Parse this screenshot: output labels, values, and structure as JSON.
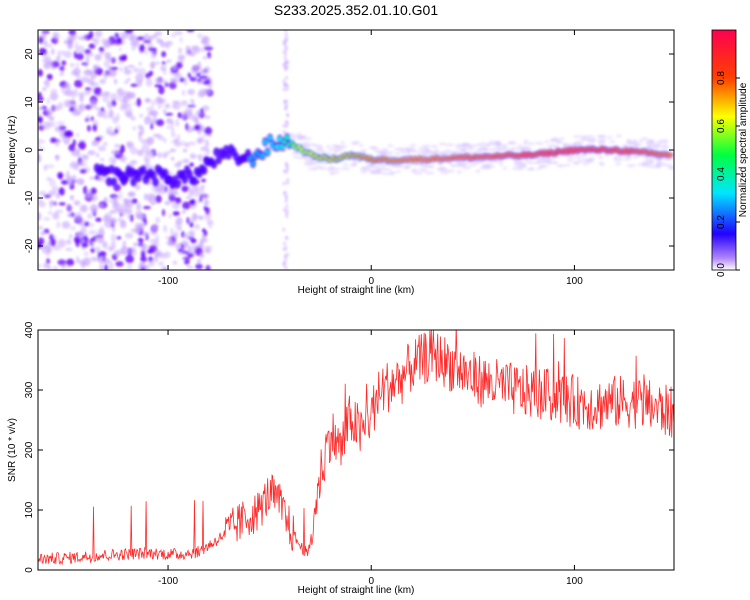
{
  "figure": {
    "title": "S233.2025.352.01.10.G01"
  },
  "chart_data": [
    {
      "type": "heatmap",
      "name": "spectrogram",
      "xlabel": "Height of straight line (km)",
      "ylabel": "Frequency (Hz)",
      "xlim": [
        -164,
        149
      ],
      "ylim": [
        -25,
        25
      ],
      "xticks": [
        -100,
        0,
        100
      ],
      "yticks": [
        -20,
        -10,
        0,
        10,
        20
      ],
      "colorbar": {
        "label": "Normalized spectral amplitude",
        "range": [
          0,
          1
        ],
        "ticks": [
          "0.0",
          "0.2",
          "0.4",
          "0.6",
          "0.8"
        ]
      },
      "signal_track": {
        "x": [
          -135,
          -120,
          -110,
          -95,
          -85,
          -78,
          -70,
          -60,
          -50,
          -42,
          -38,
          -30,
          -20,
          -10,
          0,
          20,
          50,
          80,
          100,
          120,
          145
        ],
        "frequency": [
          -5,
          -5.5,
          -5,
          -6,
          -5,
          -2,
          -1,
          -2,
          1,
          2,
          1,
          -1,
          -2,
          -1,
          -2,
          -2,
          -1.5,
          -1,
          0,
          0,
          -1
        ],
        "amplitude": [
          0.2,
          0.25,
          0.3,
          0.2,
          0.25,
          0.3,
          0.35,
          0.35,
          0.4,
          0.5,
          0.6,
          0.65,
          0.7,
          0.72,
          0.8,
          0.85,
          0.9,
          0.95,
          0.95,
          0.95,
          0.9
        ]
      }
    },
    {
      "type": "line",
      "name": "snr",
      "xlabel": "Height of straight line (km)",
      "ylabel": "SNR (10 * v/v)",
      "xlim": [
        -164,
        149
      ],
      "ylim": [
        0,
        400
      ],
      "xticks": [
        -100,
        0,
        100
      ],
      "yticks": [
        0,
        100,
        200,
        300,
        400
      ],
      "color": "#ff2a2a",
      "series": [
        {
          "name": "SNR",
          "x": [
            -164,
            -150,
            -130,
            -110,
            -95,
            -85,
            -78,
            -70,
            -62,
            -55,
            -50,
            -45,
            -40,
            -35,
            -31,
            -28,
            -25,
            -20,
            -15,
            -10,
            -5,
            0,
            5,
            10,
            15,
            20,
            25,
            30,
            35,
            40,
            50,
            60,
            70,
            80,
            90,
            100,
            110,
            120,
            130,
            140,
            149
          ],
          "y": [
            18,
            20,
            25,
            28,
            26,
            30,
            45,
            65,
            85,
            100,
            130,
            110,
            70,
            40,
            25,
            90,
            160,
            230,
            200,
            255,
            225,
            260,
            300,
            310,
            320,
            340,
            350,
            360,
            350,
            340,
            320,
            310,
            300,
            295,
            290,
            280,
            275,
            280,
            280,
            270,
            260
          ]
        }
      ]
    }
  ]
}
